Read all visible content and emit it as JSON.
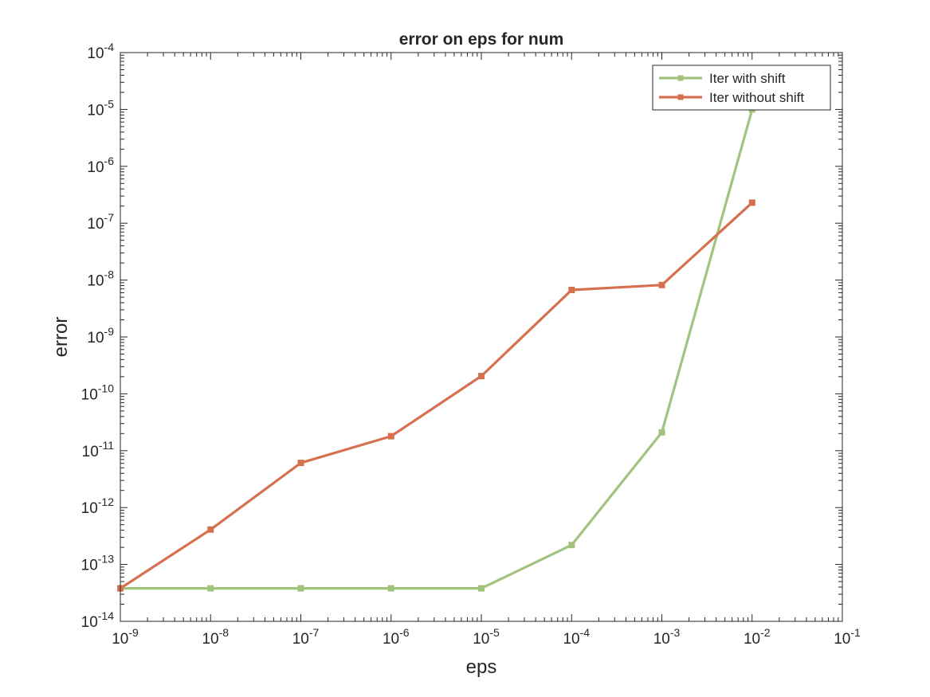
{
  "chart_data": {
    "type": "line",
    "title": "error on eps for num",
    "xlabel": "eps",
    "ylabel": "error",
    "xscale": "log",
    "yscale": "log",
    "xlim": [
      1e-09,
      0.1
    ],
    "ylim": [
      1e-14,
      0.0001
    ],
    "x_ticks": [
      {
        "base": "10",
        "exp": "-9"
      },
      {
        "base": "10",
        "exp": "-8"
      },
      {
        "base": "10",
        "exp": "-7"
      },
      {
        "base": "10",
        "exp": "-6"
      },
      {
        "base": "10",
        "exp": "-5"
      },
      {
        "base": "10",
        "exp": "-4"
      },
      {
        "base": "10",
        "exp": "-3"
      },
      {
        "base": "10",
        "exp": "-2"
      },
      {
        "base": "10",
        "exp": "-1"
      }
    ],
    "y_ticks": [
      {
        "base": "10",
        "exp": "-14"
      },
      {
        "base": "10",
        "exp": "-13"
      },
      {
        "base": "10",
        "exp": "-12"
      },
      {
        "base": "10",
        "exp": "-11"
      },
      {
        "base": "10",
        "exp": "-10"
      },
      {
        "base": "10",
        "exp": "-9"
      },
      {
        "base": "10",
        "exp": "-8"
      },
      {
        "base": "10",
        "exp": "-7"
      },
      {
        "base": "10",
        "exp": "-6"
      },
      {
        "base": "10",
        "exp": "-5"
      },
      {
        "base": "10",
        "exp": "-4"
      }
    ],
    "grid": false,
    "legend_position": "top-right",
    "x": [
      1e-09,
      1e-08,
      1e-07,
      1e-06,
      1e-05,
      0.0001,
      0.001,
      0.01
    ],
    "series": [
      {
        "name": "Iter with shift",
        "color": "#a2c37d",
        "values": [
          3.8e-14,
          3.8e-14,
          3.8e-14,
          3.8e-14,
          3.8e-14,
          2.2e-13,
          2.1e-11,
          1e-05
        ]
      },
      {
        "name": "Iter without shift",
        "color": "#d5714f",
        "values": [
          3.8e-14,
          4.1e-13,
          6.1e-12,
          1.8e-11,
          2.05e-10,
          6.7e-09,
          8.2e-09,
          2.3e-07
        ]
      }
    ]
  }
}
